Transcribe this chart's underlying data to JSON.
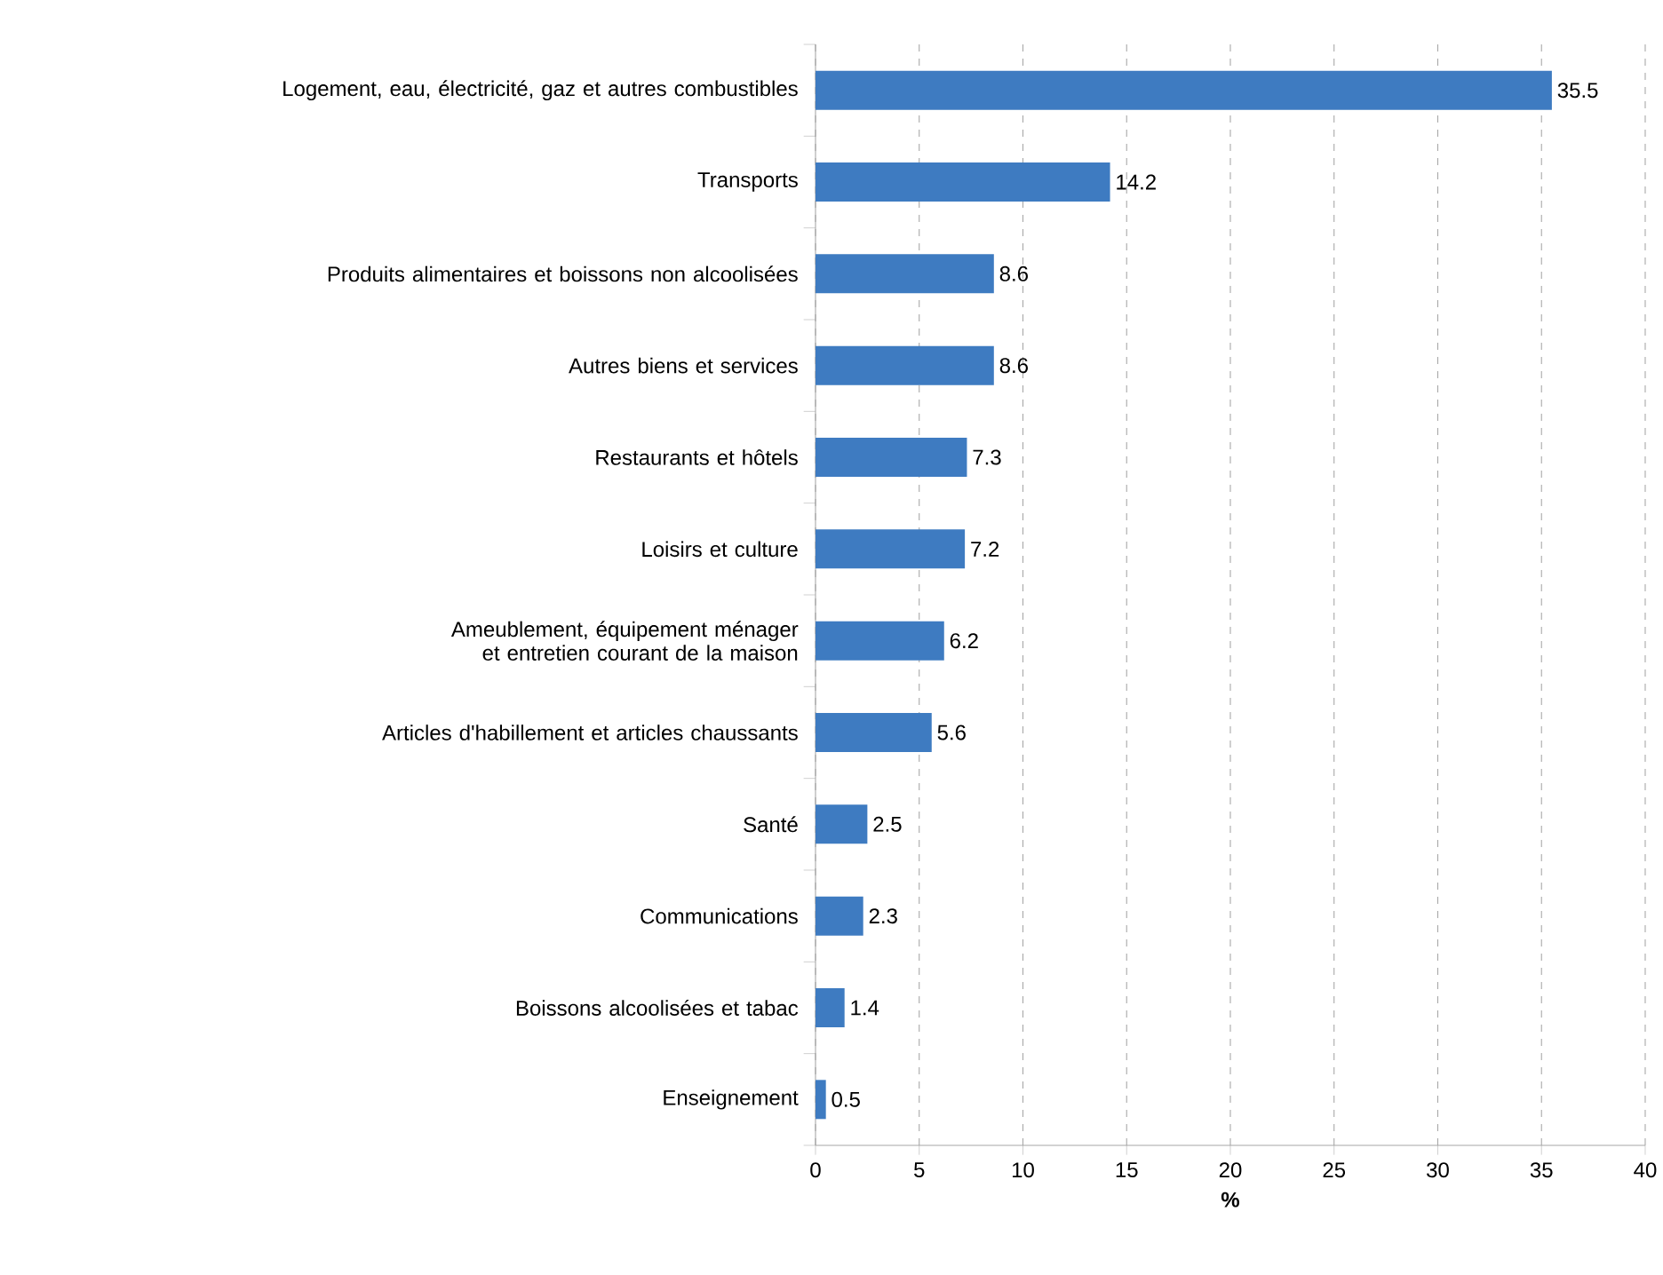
{
  "chart_data": {
    "type": "bar",
    "orientation": "horizontal",
    "categories": [
      "Logement, eau, électricité, gaz et autres combustibles",
      "Transports",
      "Produits alimentaires et boissons non alcoolisées",
      "Autres biens et services",
      "Restaurants et hôtels",
      "Loisirs et culture",
      "Ameublement, équipement ménager et entretien courant de la maison",
      "Articles d'habillement et articles chaussants",
      "Santé",
      "Communications",
      "Boissons alcoolisées et tabac",
      "Enseignement"
    ],
    "values": [
      35.5,
      14.2,
      8.6,
      8.6,
      7.3,
      7.2,
      6.2,
      5.6,
      2.5,
      2.3,
      1.4,
      0.5
    ],
    "color": "#3e7bc1",
    "xlim": [
      0,
      40
    ],
    "xticks": [
      0,
      5,
      10,
      15,
      20,
      25,
      30,
      35,
      40
    ],
    "xlabel": "%",
    "grid": "x",
    "data_labels": true
  }
}
